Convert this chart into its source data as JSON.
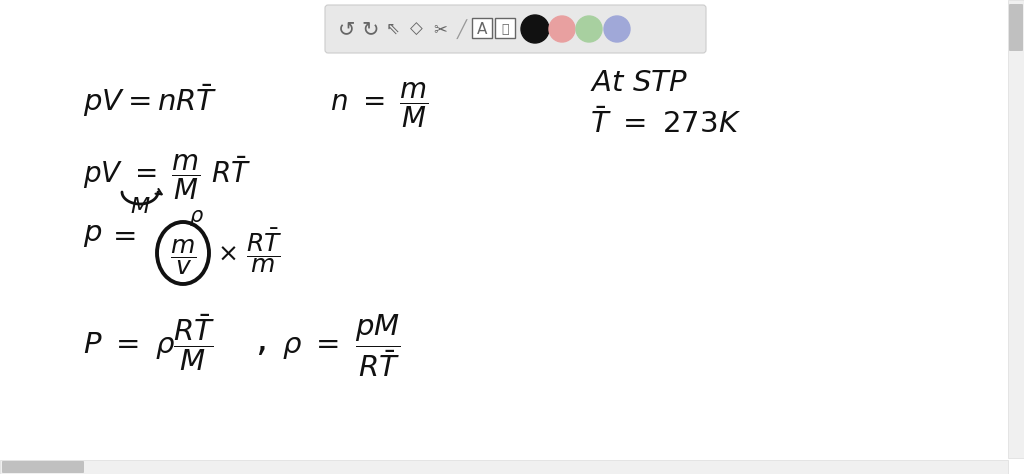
{
  "bg_color": "#ffffff",
  "toolbar_bg": "#e8e8e8",
  "toolbar_border": "#cccccc",
  "ink_color": "#111111",
  "circle_colors": [
    "#111111",
    "#e8a0a0",
    "#a8d0a0",
    "#a0a8d8"
  ],
  "toolbar_icon_color": "#666666",
  "scrollbar_bg": "#e0e0e0",
  "scrollbar_thumb": "#bbbbbb",
  "right_scroll_bg": "#f0f0f0",
  "right_scroll_thumb": "#cccccc"
}
